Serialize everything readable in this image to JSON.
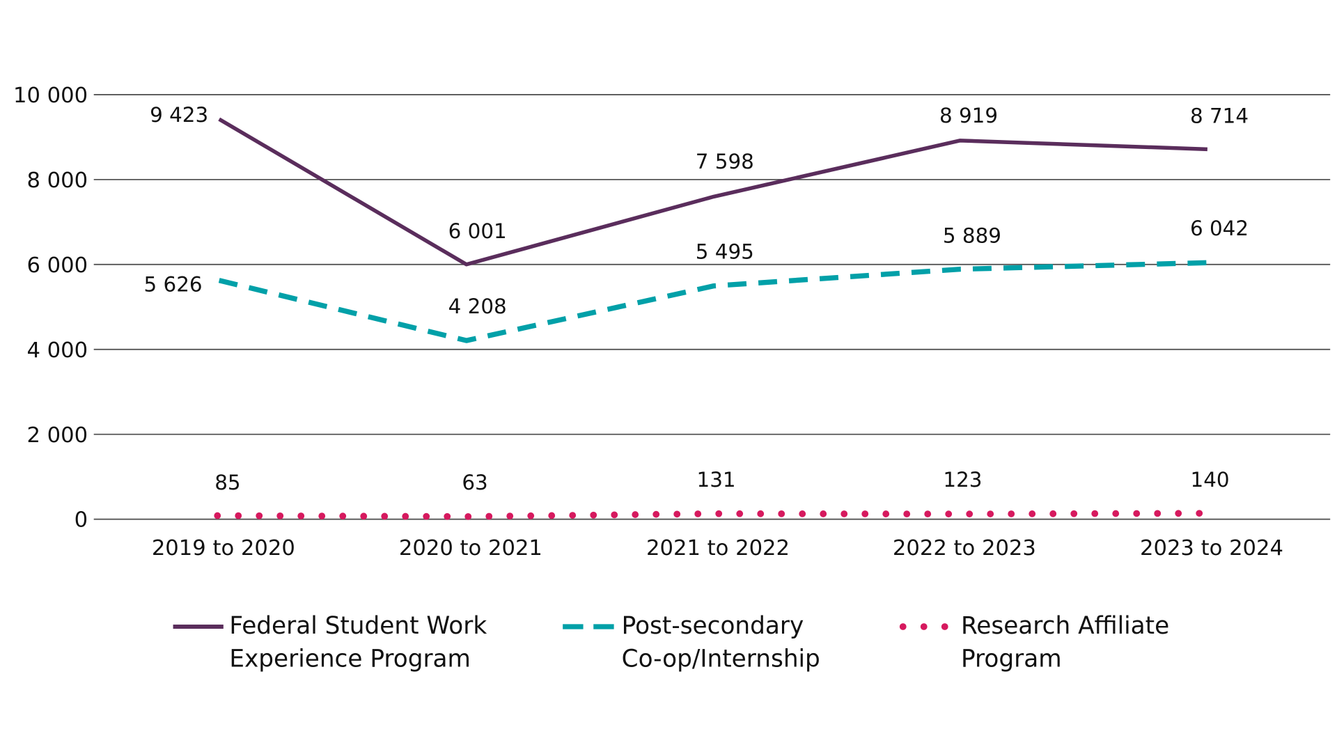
{
  "chart_data": {
    "type": "line",
    "title": "",
    "xlabel": "",
    "ylabel": "",
    "categories": [
      "2019 to 2020",
      "2020 to 2021",
      "2021 to 2022",
      "2022 to 2023",
      "2023 to 2024"
    ],
    "ylim": [
      0,
      10000
    ],
    "yticks": [
      0,
      2000,
      4000,
      6000,
      8000,
      10000
    ],
    "ytick_labels": [
      "0",
      "2 000",
      "4 000",
      "6 000",
      "8 000",
      "10 000"
    ],
    "grid": true,
    "legend_position": "bottom",
    "series": [
      {
        "name_line1": "Federal Student Work",
        "name_line2": "Experience Program",
        "style": "solid",
        "color": "#5a2d5c",
        "values": [
          9423,
          6001,
          7598,
          8919,
          8714
        ],
        "labels": [
          "9 423",
          "6 001",
          "7 598",
          "8 919",
          "8 714"
        ]
      },
      {
        "name_line1": "Post-secondary",
        "name_line2": "Co-op/Internship",
        "style": "dashed",
        "color": "#00a0a8",
        "values": [
          5626,
          4208,
          5495,
          5889,
          6042
        ],
        "labels": [
          "5 626",
          "4 208",
          "5 495",
          "5 889",
          "6 042"
        ]
      },
      {
        "name_line1": "Research Affiliate",
        "name_line2": "Program",
        "style": "dotted",
        "color": "#d6195e",
        "values": [
          85,
          63,
          131,
          123,
          140
        ],
        "labels": [
          "85",
          "63",
          "131",
          "123",
          "140"
        ]
      }
    ]
  }
}
